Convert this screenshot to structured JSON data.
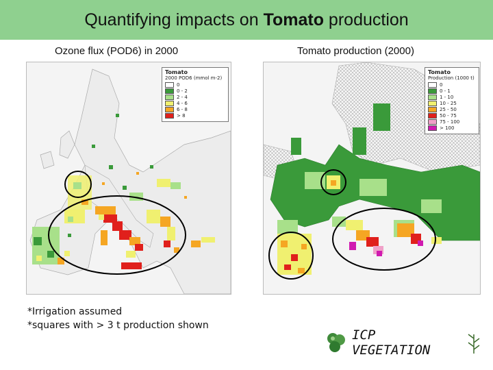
{
  "title": {
    "pre": "Quantifying impacts on ",
    "bold": "Tomato",
    "post": " production"
  },
  "left_caption": "Ozone flux (POD6) in 2000",
  "right_caption": "Tomato production (2000)",
  "left_legend": {
    "title": "Tomato",
    "subtitle": "2000 POD6 (mmol m-2)",
    "items": [
      {
        "label": "0",
        "color": "#ffffff"
      },
      {
        "label": "0 - 2",
        "color": "#3a9a3a"
      },
      {
        "label": "2 - 4",
        "color": "#a8e08a"
      },
      {
        "label": "4 - 6",
        "color": "#f0f070"
      },
      {
        "label": "6 - 8",
        "color": "#f5a623"
      },
      {
        "label": "> 8",
        "color": "#e0201c"
      }
    ]
  },
  "right_legend": {
    "title": "Tomato",
    "subtitle": "Production (1000 t)",
    "items": [
      {
        "label": "0",
        "color": "#ffffff"
      },
      {
        "label": "0 - 1",
        "color": "#3a9a3a"
      },
      {
        "label": "1 - 10",
        "color": "#a8e08a"
      },
      {
        "label": "10 - 25",
        "color": "#f0f070"
      },
      {
        "label": "25 - 50",
        "color": "#f5a623"
      },
      {
        "label": "50 - 75",
        "color": "#e0201c"
      },
      {
        "label": "75 - 100",
        "color": "#f0a0c8"
      },
      {
        "label": "> 100",
        "color": "#d01ab0"
      }
    ]
  },
  "notes": [
    "*Irrigation assumed",
    "*squares with > 3 t production shown"
  ],
  "logo_text": "ICP VEGETATION",
  "colors": {
    "title_bar": "#8fd08f",
    "circle": "#000000"
  }
}
